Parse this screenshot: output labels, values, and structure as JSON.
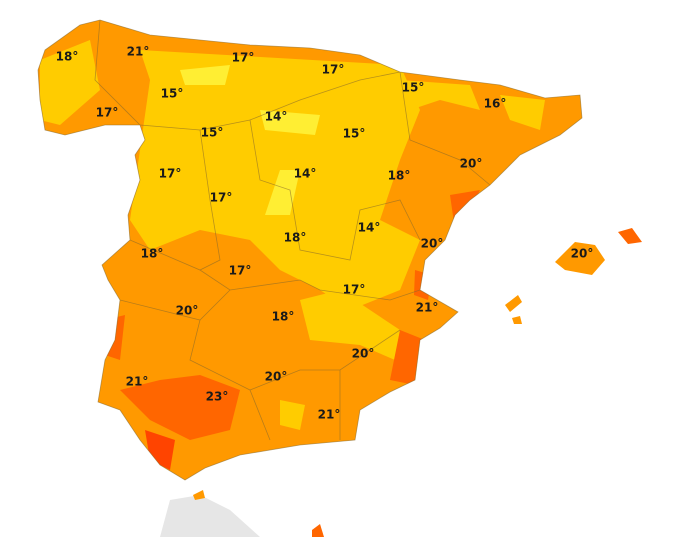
{
  "labels": [
    "18°",
    "21°",
    "17°",
    "17°",
    "15°",
    "15°",
    "16°",
    "17°",
    "14°",
    "15°",
    "15°",
    "17°",
    "14°",
    "18°",
    "20°",
    "17°",
    "18°",
    "14°",
    "20°",
    "20°",
    "18°",
    "17°",
    "17°",
    "21°",
    "20°",
    "18°",
    "20°",
    "21°",
    "20°",
    "23°",
    "21°"
  ]
}
